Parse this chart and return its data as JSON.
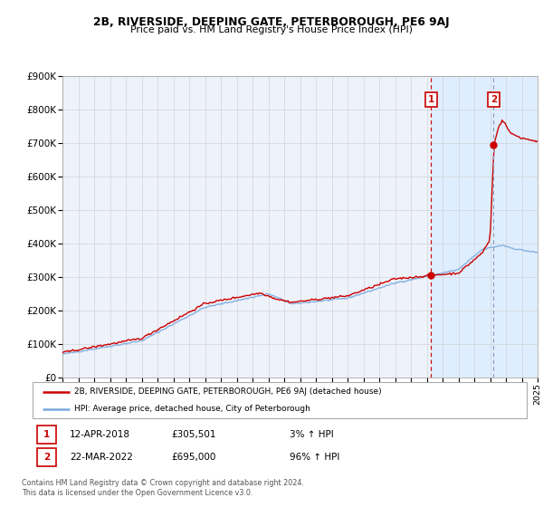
{
  "title": "2B, RIVERSIDE, DEEPING GATE, PETERBOROUGH, PE6 9AJ",
  "subtitle": "Price paid vs. HM Land Registry's House Price Index (HPI)",
  "legend_line1": "2B, RIVERSIDE, DEEPING GATE, PETERBOROUGH, PE6 9AJ (detached house)",
  "legend_line2": "HPI: Average price, detached house, City of Peterborough",
  "hpi_color": "#7aaadd",
  "price_color": "#cc0000",
  "marker1_date": 2018.28,
  "marker1_price": 305501,
  "marker2_date": 2022.22,
  "marker2_price": 695000,
  "annotation1_date": "12-APR-2018",
  "annotation1_price": "£305,501",
  "annotation1_hpi": "3% ↑ HPI",
  "annotation2_date": "22-MAR-2022",
  "annotation2_price": "£695,000",
  "annotation2_hpi": "96% ↑ HPI",
  "footer": "Contains HM Land Registry data © Crown copyright and database right 2024.\nThis data is licensed under the Open Government Licence v3.0.",
  "xlim": [
    1995,
    2025
  ],
  "ylim": [
    0,
    900000
  ],
  "yticks": [
    0,
    100000,
    200000,
    300000,
    400000,
    500000,
    600000,
    700000,
    800000,
    900000
  ],
  "ytick_labels": [
    "£0",
    "£100K",
    "£200K",
    "£300K",
    "£400K",
    "£500K",
    "£600K",
    "£700K",
    "£800K",
    "£900K"
  ],
  "xticks": [
    1995,
    1996,
    1997,
    1998,
    1999,
    2000,
    2001,
    2002,
    2003,
    2004,
    2005,
    2006,
    2007,
    2008,
    2009,
    2010,
    2011,
    2012,
    2013,
    2014,
    2015,
    2016,
    2017,
    2018,
    2019,
    2020,
    2021,
    2022,
    2023,
    2024,
    2025
  ],
  "shade_start": 2018.28,
  "shade_end": 2025.5,
  "shade_color": "#ddeeff",
  "plot_bg_color": "#eef2fa",
  "background_color": "#ffffff",
  "grid_color": "#cccccc",
  "box_color": "#cc0000"
}
